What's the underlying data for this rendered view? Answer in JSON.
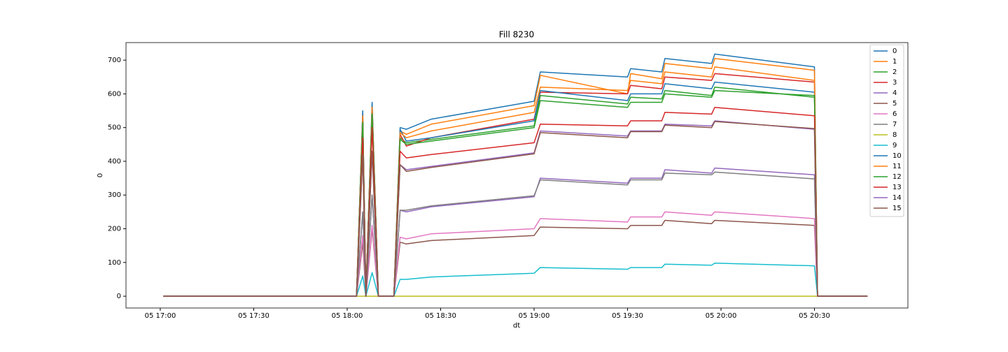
{
  "chart_data": {
    "type": "line",
    "title": "Fill 8230",
    "x_label": "dt",
    "y_label": "0",
    "x": [
      "05 17:01",
      "05 18:03",
      "05 18:05",
      "05 18:06",
      "05 18:08",
      "05 18:10",
      "05 18:15",
      "05 18:17",
      "05 18:19",
      "05 18:27",
      "05 19:00",
      "05 19:02",
      "05 19:30",
      "05 19:31",
      "05 19:41",
      "05 19:42",
      "05 19:57",
      "05 19:58",
      "05 20:30",
      "05 20:31",
      "05 20:47"
    ],
    "xlim": [
      "05 16:49",
      "05 21:00"
    ],
    "xticks": [
      "05 17:00",
      "05 17:30",
      "05 18:00",
      "05 18:30",
      "05 19:00",
      "05 19:30",
      "05 20:00",
      "05 20:30"
    ],
    "ylim": [
      -35,
      752
    ],
    "yticks": [
      0,
      100,
      200,
      300,
      400,
      500,
      600,
      700
    ],
    "grid": false,
    "legend": "upper right",
    "series": [
      {
        "name": "0",
        "color": "#1f77b4",
        "values": [
          0,
          0,
          550,
          0,
          575,
          0,
          0,
          500,
          495,
          525,
          578,
          665,
          650,
          675,
          665,
          705,
          690,
          718,
          680,
          0,
          0
        ]
      },
      {
        "name": "1",
        "color": "#ff7f0e",
        "values": [
          0,
          0,
          540,
          0,
          565,
          0,
          0,
          490,
          480,
          510,
          565,
          655,
          600,
          660,
          645,
          690,
          675,
          705,
          670,
          0,
          0
        ]
      },
      {
        "name": "2",
        "color": "#2ca02c",
        "values": [
          0,
          0,
          520,
          0,
          545,
          0,
          0,
          470,
          455,
          465,
          505,
          595,
          570,
          590,
          585,
          610,
          595,
          620,
          590,
          0,
          0
        ]
      },
      {
        "name": "3",
        "color": "#d62728",
        "values": [
          0,
          0,
          530,
          0,
          555,
          0,
          0,
          480,
          445,
          470,
          525,
          605,
          600,
          625,
          615,
          650,
          640,
          660,
          635,
          0,
          0
        ]
      },
      {
        "name": "4",
        "color": "#9467bd",
        "values": [
          0,
          0,
          250,
          0,
          300,
          0,
          0,
          255,
          250,
          265,
          295,
          350,
          335,
          350,
          350,
          375,
          365,
          380,
          360,
          0,
          0
        ]
      },
      {
        "name": "5",
        "color": "#8c564b",
        "values": [
          0,
          0,
          160,
          0,
          200,
          0,
          0,
          160,
          155,
          165,
          180,
          205,
          200,
          210,
          210,
          225,
          215,
          225,
          210,
          0,
          0
        ]
      },
      {
        "name": "6",
        "color": "#e377c2",
        "values": [
          0,
          0,
          180,
          0,
          210,
          0,
          0,
          175,
          170,
          185,
          200,
          230,
          220,
          235,
          235,
          250,
          240,
          250,
          230,
          0,
          0
        ]
      },
      {
        "name": "7",
        "color": "#7f7f7f",
        "values": [
          0,
          0,
          250,
          0,
          300,
          0,
          0,
          255,
          255,
          268,
          298,
          345,
          330,
          345,
          345,
          365,
          360,
          368,
          348,
          0,
          0
        ]
      },
      {
        "name": "8",
        "color": "#bcbd22",
        "values": [
          0,
          0,
          0,
          0,
          0,
          0,
          0,
          0,
          0,
          0,
          0,
          0,
          0,
          0,
          0,
          0,
          0,
          0,
          0,
          0,
          0
        ]
      },
      {
        "name": "9",
        "color": "#17becf",
        "values": [
          0,
          0,
          60,
          0,
          70,
          0,
          0,
          50,
          50,
          57,
          68,
          85,
          80,
          85,
          85,
          95,
          92,
          98,
          90,
          0,
          0
        ]
      },
      {
        "name": "10",
        "color": "#1f77b4",
        "values": [
          0,
          0,
          545,
          0,
          570,
          0,
          0,
          495,
          460,
          470,
          520,
          610,
          580,
          600,
          600,
          630,
          615,
          635,
          605,
          0,
          0
        ]
      },
      {
        "name": "11",
        "color": "#ff7f0e",
        "values": [
          0,
          0,
          535,
          0,
          560,
          0,
          0,
          485,
          470,
          490,
          545,
          620,
          610,
          640,
          630,
          665,
          650,
          680,
          640,
          0,
          0
        ]
      },
      {
        "name": "12",
        "color": "#2ca02c",
        "values": [
          0,
          0,
          515,
          0,
          540,
          0,
          0,
          465,
          450,
          460,
          500,
          580,
          560,
          575,
          575,
          600,
          590,
          610,
          595,
          0,
          0
        ]
      },
      {
        "name": "13",
        "color": "#d62728",
        "values": [
          0,
          0,
          470,
          0,
          500,
          0,
          0,
          430,
          410,
          420,
          455,
          510,
          505,
          520,
          520,
          545,
          540,
          560,
          535,
          0,
          0
        ]
      },
      {
        "name": "14",
        "color": "#9467bd",
        "values": [
          0,
          0,
          420,
          0,
          430,
          0,
          0,
          390,
          375,
          385,
          425,
          490,
          475,
          490,
          490,
          510,
          505,
          520,
          495,
          0,
          0
        ]
      },
      {
        "name": "15",
        "color": "#8c564b",
        "values": [
          0,
          0,
          420,
          0,
          430,
          0,
          0,
          390,
          370,
          382,
          422,
          485,
          470,
          488,
          488,
          507,
          500,
          518,
          497,
          0,
          0
        ]
      }
    ]
  }
}
